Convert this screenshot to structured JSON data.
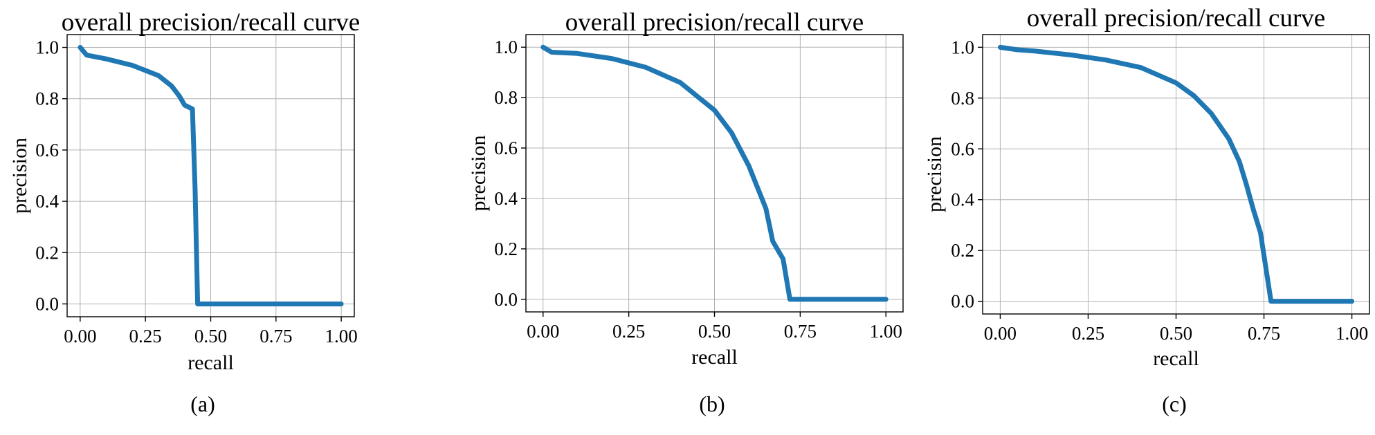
{
  "chart_data": [
    {
      "type": "line",
      "caption": "(a)",
      "title": "overall precision/recall curve",
      "xlabel": "recall",
      "ylabel": "precision",
      "xlim": [
        0,
        1
      ],
      "ylim": [
        0,
        1
      ],
      "xticks": [
        "0.00",
        "0.25",
        "0.50",
        "0.75",
        "1.00"
      ],
      "yticks": [
        "0.0",
        "0.2",
        "0.4",
        "0.6",
        "0.8",
        "1.0"
      ],
      "grid": true,
      "series": [
        {
          "color": "#1f77b4",
          "x": [
            0.0,
            0.025,
            0.1,
            0.2,
            0.3,
            0.35,
            0.38,
            0.4,
            0.42,
            0.43,
            0.44,
            0.45,
            0.5,
            0.75,
            1.0
          ],
          "y": [
            1.0,
            0.97,
            0.955,
            0.93,
            0.89,
            0.85,
            0.81,
            0.775,
            0.765,
            0.76,
            0.45,
            0.0,
            0.0,
            0.0,
            0.0
          ]
        }
      ]
    },
    {
      "type": "line",
      "caption": "(b)",
      "title": "overall precision/recall curve",
      "xlabel": "recall",
      "ylabel": "precision",
      "xlim": [
        0,
        1
      ],
      "ylim": [
        0,
        1
      ],
      "xticks": [
        "0.00",
        "0.25",
        "0.50",
        "0.75",
        "1.00"
      ],
      "yticks": [
        "0.0",
        "0.2",
        "0.4",
        "0.6",
        "0.8",
        "1.0"
      ],
      "grid": true,
      "series": [
        {
          "color": "#1f77b4",
          "x": [
            0.0,
            0.025,
            0.1,
            0.2,
            0.3,
            0.4,
            0.5,
            0.55,
            0.6,
            0.65,
            0.67,
            0.7,
            0.72,
            0.75,
            1.0
          ],
          "y": [
            1.0,
            0.98,
            0.975,
            0.955,
            0.92,
            0.86,
            0.75,
            0.66,
            0.53,
            0.36,
            0.23,
            0.16,
            0.0,
            0.0,
            0.0
          ]
        }
      ]
    },
    {
      "type": "line",
      "caption": "(c)",
      "title": "overall precision/recall curve",
      "xlabel": "recall",
      "ylabel": "precision",
      "xlim": [
        0,
        1
      ],
      "ylim": [
        0,
        1
      ],
      "xticks": [
        "0.00",
        "0.25",
        "0.50",
        "0.75",
        "1.00"
      ],
      "yticks": [
        "0.0",
        "0.2",
        "0.4",
        "0.6",
        "0.8",
        "1.0"
      ],
      "grid": true,
      "series": [
        {
          "color": "#1f77b4",
          "x": [
            0.0,
            0.05,
            0.1,
            0.2,
            0.3,
            0.4,
            0.5,
            0.55,
            0.6,
            0.65,
            0.68,
            0.7,
            0.72,
            0.74,
            0.77,
            0.8,
            1.0
          ],
          "y": [
            1.0,
            0.99,
            0.985,
            0.97,
            0.95,
            0.92,
            0.86,
            0.81,
            0.74,
            0.64,
            0.55,
            0.46,
            0.36,
            0.27,
            0.0,
            0.0,
            0.0
          ]
        }
      ]
    }
  ]
}
